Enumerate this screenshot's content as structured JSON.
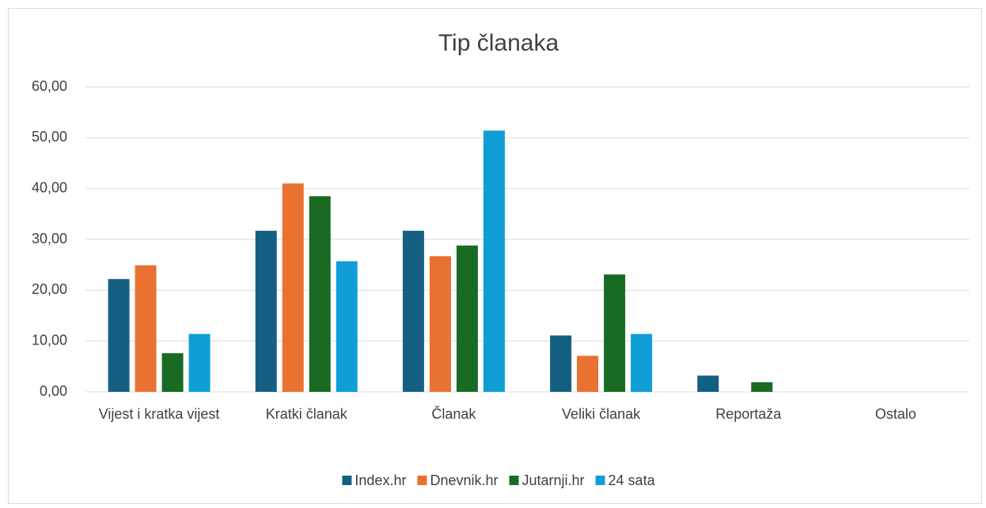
{
  "chart_data": {
    "type": "bar",
    "title": "Tip članaka",
    "categories": [
      "Vijest i kratka vijest",
      "Kratki članak",
      "Članak",
      "Veliki članak",
      "Reportaža",
      "Ostalo"
    ],
    "series": [
      {
        "name": "Index.hr",
        "color": "#156082",
        "values": [
          22.2,
          31.7,
          31.7,
          11.1,
          3.2,
          0
        ]
      },
      {
        "name": "Dnevnik.hr",
        "color": "#e97132",
        "values": [
          24.9,
          41.0,
          26.7,
          7.1,
          0,
          0
        ]
      },
      {
        "name": "Jutarnji.hr",
        "color": "#196b24",
        "values": [
          7.6,
          38.5,
          28.8,
          23.1,
          1.9,
          0
        ]
      },
      {
        "name": "24 sata",
        "color": "#0f9ed5",
        "values": [
          11.4,
          25.7,
          51.4,
          11.4,
          0,
          0
        ]
      }
    ],
    "ylim": [
      0,
      60
    ],
    "yticks": [
      {
        "value": 0,
        "label": "0,00"
      },
      {
        "value": 10,
        "label": "10,00"
      },
      {
        "value": 20,
        "label": "20,00"
      },
      {
        "value": 30,
        "label": "30,00"
      },
      {
        "value": 40,
        "label": "40,00"
      },
      {
        "value": 50,
        "label": "50,00"
      },
      {
        "value": 60,
        "label": "60,00"
      }
    ],
    "grid": true,
    "legend": "bottom"
  }
}
